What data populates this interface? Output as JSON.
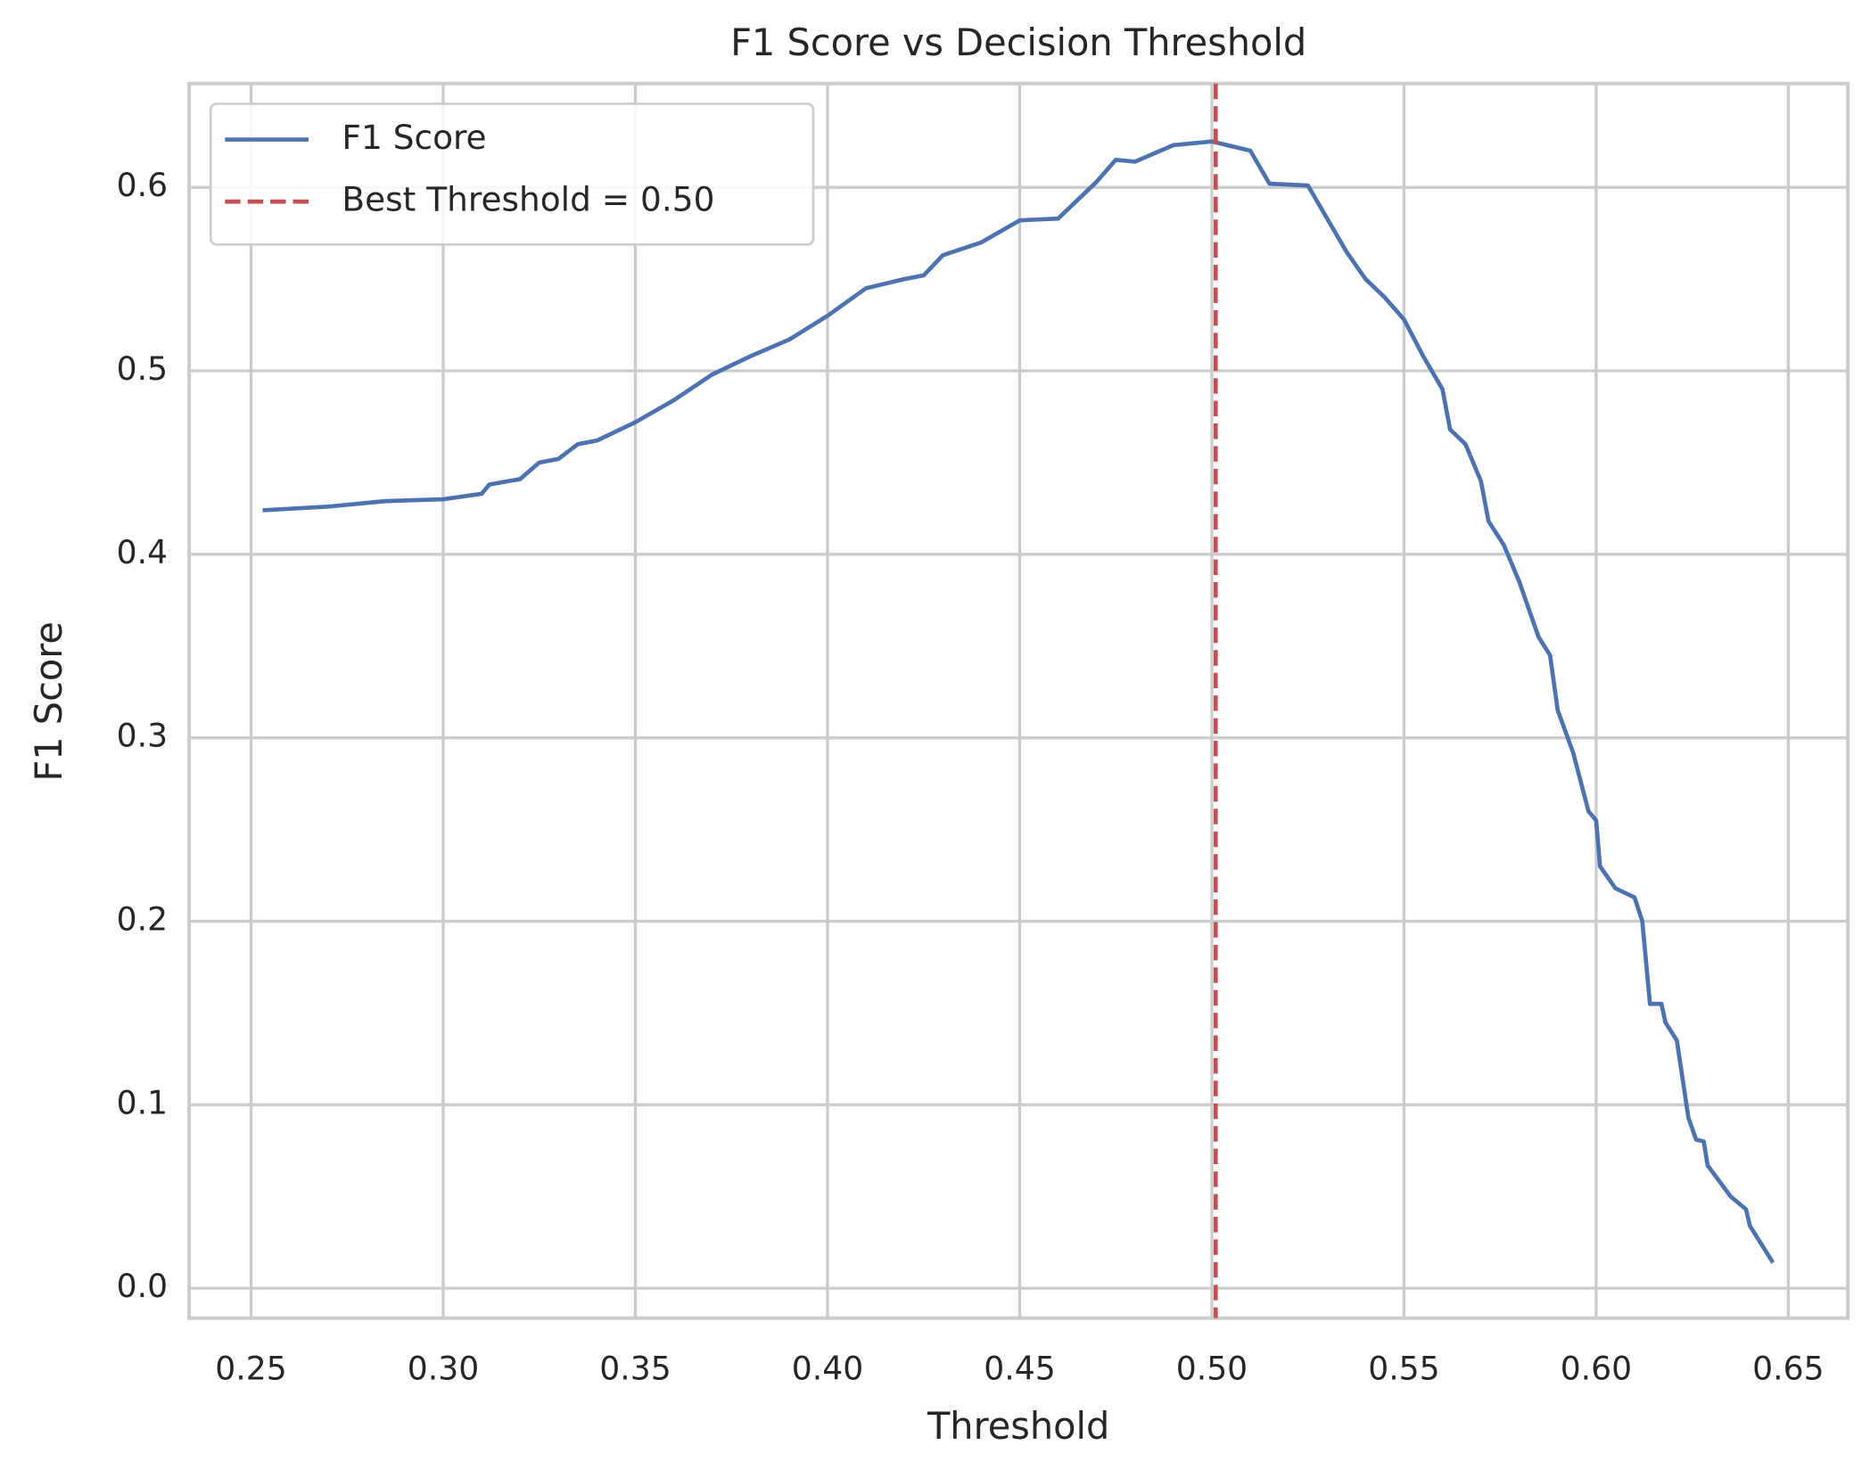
{
  "chart_data": {
    "type": "line",
    "title": "F1 Score vs Decision Threshold",
    "x_label": "Threshold",
    "y_label": "F1 Score",
    "x": [
      0.253,
      0.27,
      0.285,
      0.3,
      0.31,
      0.312,
      0.32,
      0.325,
      0.33,
      0.335,
      0.34,
      0.35,
      0.36,
      0.37,
      0.38,
      0.39,
      0.4,
      0.41,
      0.42,
      0.425,
      0.43,
      0.44,
      0.45,
      0.46,
      0.47,
      0.475,
      0.48,
      0.49,
      0.5,
      0.51,
      0.515,
      0.525,
      0.53,
      0.535,
      0.54,
      0.545,
      0.55,
      0.555,
      0.56,
      0.562,
      0.566,
      0.57,
      0.572,
      0.576,
      0.58,
      0.585,
      0.588,
      0.59,
      0.594,
      0.598,
      0.6,
      0.601,
      0.605,
      0.61,
      0.612,
      0.614,
      0.617,
      0.618,
      0.621,
      0.624,
      0.626,
      0.628,
      0.629,
      0.635,
      0.639,
      0.64,
      0.646
    ],
    "series": [
      {
        "name": "F1 Score",
        "color": "#4c72b0",
        "values": [
          0.424,
          0.426,
          0.429,
          0.43,
          0.433,
          0.438,
          0.441,
          0.45,
          0.452,
          0.46,
          0.462,
          0.472,
          0.484,
          0.498,
          0.508,
          0.517,
          0.53,
          0.545,
          0.55,
          0.552,
          0.563,
          0.57,
          0.582,
          0.583,
          0.603,
          0.615,
          0.614,
          0.623,
          0.625,
          0.62,
          0.602,
          0.601,
          0.583,
          0.565,
          0.55,
          0.54,
          0.528,
          0.508,
          0.49,
          0.468,
          0.46,
          0.44,
          0.418,
          0.405,
          0.385,
          0.355,
          0.345,
          0.315,
          0.292,
          0.26,
          0.255,
          0.23,
          0.218,
          0.213,
          0.2,
          0.155,
          0.155,
          0.145,
          0.135,
          0.093,
          0.081,
          0.08,
          0.067,
          0.05,
          0.043,
          0.034,
          0.014
        ]
      }
    ],
    "vlines": [
      {
        "x": 0.501,
        "label": "Best Threshold = 0.50",
        "color": "#c44e52"
      }
    ],
    "xlim": [
      0.2339,
      0.6655
    ],
    "ylim": [
      -0.0163,
      0.6566
    ],
    "xticks": [
      0.25,
      {
        "value": 0.3,
        "label": "0.30"
      },
      0.35,
      {
        "value": 0.4,
        "label": "0.40"
      },
      0.45,
      {
        "value": 0.5,
        "label": "0.50"
      },
      0.55,
      {
        "value": 0.6,
        "label": "0.60"
      },
      0.65
    ],
    "yticks": [
      {
        "value": 0,
        "label": "0.0"
      },
      0.1,
      0.2,
      0.3,
      0.4,
      0.5,
      0.6
    ],
    "grid": true,
    "legend": "upper left"
  }
}
